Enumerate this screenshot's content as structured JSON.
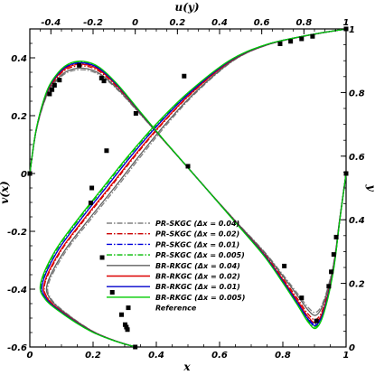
{
  "chart_data": {
    "type": "line",
    "axes": {
      "x_bottom": {
        "label": "x",
        "range": [
          0,
          1
        ],
        "ticks": [
          0,
          0.2,
          0.4,
          0.6,
          0.8,
          1
        ],
        "tick_labels": [
          "0",
          "0.2",
          "0.4",
          "0.6",
          "0.8",
          "1"
        ]
      },
      "y_left": {
        "label": "v(x)",
        "range": [
          -0.6,
          0.5
        ],
        "ticks": [
          -0.6,
          -0.4,
          -0.2,
          0,
          0.2,
          0.4
        ],
        "tick_labels": [
          "-0.6",
          "-0.4",
          "-0.2",
          "0",
          "0.2",
          "0.4"
        ]
      },
      "x_top": {
        "label": "u(y)",
        "range": [
          -0.5,
          1
        ],
        "ticks": [
          -0.4,
          -0.2,
          0,
          0.2,
          0.4,
          0.6,
          0.8,
          1
        ],
        "tick_labels": [
          "-0.4",
          "-0.2",
          "0",
          "0.2",
          "0.4",
          "0.6",
          "0.8",
          "1"
        ]
      },
      "y_right": {
        "label": "y",
        "range": [
          0,
          1
        ],
        "ticks": [
          0,
          0.2,
          0.4,
          0.6,
          0.8,
          1
        ],
        "tick_labels": [
          "0",
          "0.2",
          "0.4",
          "0.6",
          "0.8",
          "1"
        ]
      }
    },
    "grid": false,
    "legend_position": "bottom-center",
    "series": [
      {
        "name": "PR-SKGC (Δx = 0.04)",
        "color": "#808080",
        "dash": "dashdot",
        "v_offset": -0.04,
        "u_offset": 0.05
      },
      {
        "name": "PR-SKGC (Δx = 0.02)",
        "color": "#cc0000",
        "dash": "dashdot",
        "v_offset": -0.015,
        "u_offset": 0.02
      },
      {
        "name": "PR-SKGC (Δx = 0.01)",
        "color": "#0000dd",
        "dash": "dashdot",
        "v_offset": 0.0,
        "u_offset": 0.0
      },
      {
        "name": "PR-SKGC (Δx = 0.005)",
        "color": "#00bb00",
        "dash": "dashdot",
        "v_offset": 0.01,
        "u_offset": -0.01
      },
      {
        "name": "BR-RKGC (Δx = 0.04)",
        "color": "#606060",
        "dash": "solid",
        "v_offset": -0.03,
        "u_offset": 0.04
      },
      {
        "name": "BR-RKGC (Δx = 0.02)",
        "color": "#dd0000",
        "dash": "solid",
        "v_offset": -0.005,
        "u_offset": 0.015
      },
      {
        "name": "BR-RKGC (Δx = 0.01)",
        "color": "#0000cc",
        "dash": "solid",
        "v_offset": 0.005,
        "u_offset": 0.0
      },
      {
        "name": "BR-RKGC (Δx = 0.005)",
        "color": "#00cc00",
        "dash": "solid",
        "v_offset": 0.015,
        "u_offset": -0.015
      }
    ],
    "reference_name": "Reference",
    "v_profile": {
      "x": [
        0.0,
        0.02,
        0.05,
        0.08,
        0.12,
        0.17,
        0.22,
        0.28,
        0.35,
        0.42,
        0.5,
        0.58,
        0.66,
        0.74,
        0.8,
        0.85,
        0.88,
        0.905,
        0.93,
        0.96,
        0.98,
        1.0
      ],
      "v": [
        0.0,
        0.15,
        0.27,
        0.33,
        0.37,
        0.38,
        0.36,
        0.3,
        0.21,
        0.12,
        0.02,
        -0.08,
        -0.18,
        -0.28,
        -0.37,
        -0.45,
        -0.5,
        -0.52,
        -0.47,
        -0.33,
        -0.16,
        0.0
      ]
    },
    "u_profile": {
      "y": [
        0.0,
        0.02,
        0.05,
        0.1,
        0.15,
        0.2,
        0.3,
        0.4,
        0.5,
        0.6,
        0.7,
        0.8,
        0.9,
        0.95,
        0.98,
        1.0
      ],
      "u": [
        0.0,
        -0.1,
        -0.21,
        -0.33,
        -0.42,
        -0.44,
        -0.37,
        -0.26,
        -0.14,
        -0.02,
        0.11,
        0.26,
        0.45,
        0.62,
        0.82,
        1.0
      ]
    },
    "reference_v": {
      "x": [
        0.0,
        0.0625,
        0.0703,
        0.0781,
        0.0938,
        0.1563,
        0.2266,
        0.2344,
        0.5,
        0.8047,
        0.8594,
        0.9063,
        0.9453,
        0.9531,
        0.9609,
        0.9688,
        1.0
      ],
      "v": [
        0.0,
        0.275,
        0.29,
        0.305,
        0.323,
        0.374,
        0.33,
        0.32,
        0.025,
        -0.32,
        -0.43,
        -0.51,
        -0.39,
        -0.34,
        -0.28,
        -0.22,
        0.0
      ]
    },
    "reference_u": {
      "y": [
        0.0,
        0.0547,
        0.0625,
        0.0703,
        0.1016,
        0.1719,
        0.2813,
        0.4531,
        0.5,
        0.6172,
        0.7344,
        0.8516,
        0.9531,
        0.9609,
        0.9688,
        0.9766,
        1.0
      ],
      "u": [
        0.0,
        -0.037,
        -0.042,
        -0.048,
        -0.065,
        -0.109,
        -0.157,
        -0.211,
        -0.206,
        -0.136,
        0.003,
        0.232,
        0.687,
        0.737,
        0.789,
        0.841,
        1.0
      ]
    }
  }
}
